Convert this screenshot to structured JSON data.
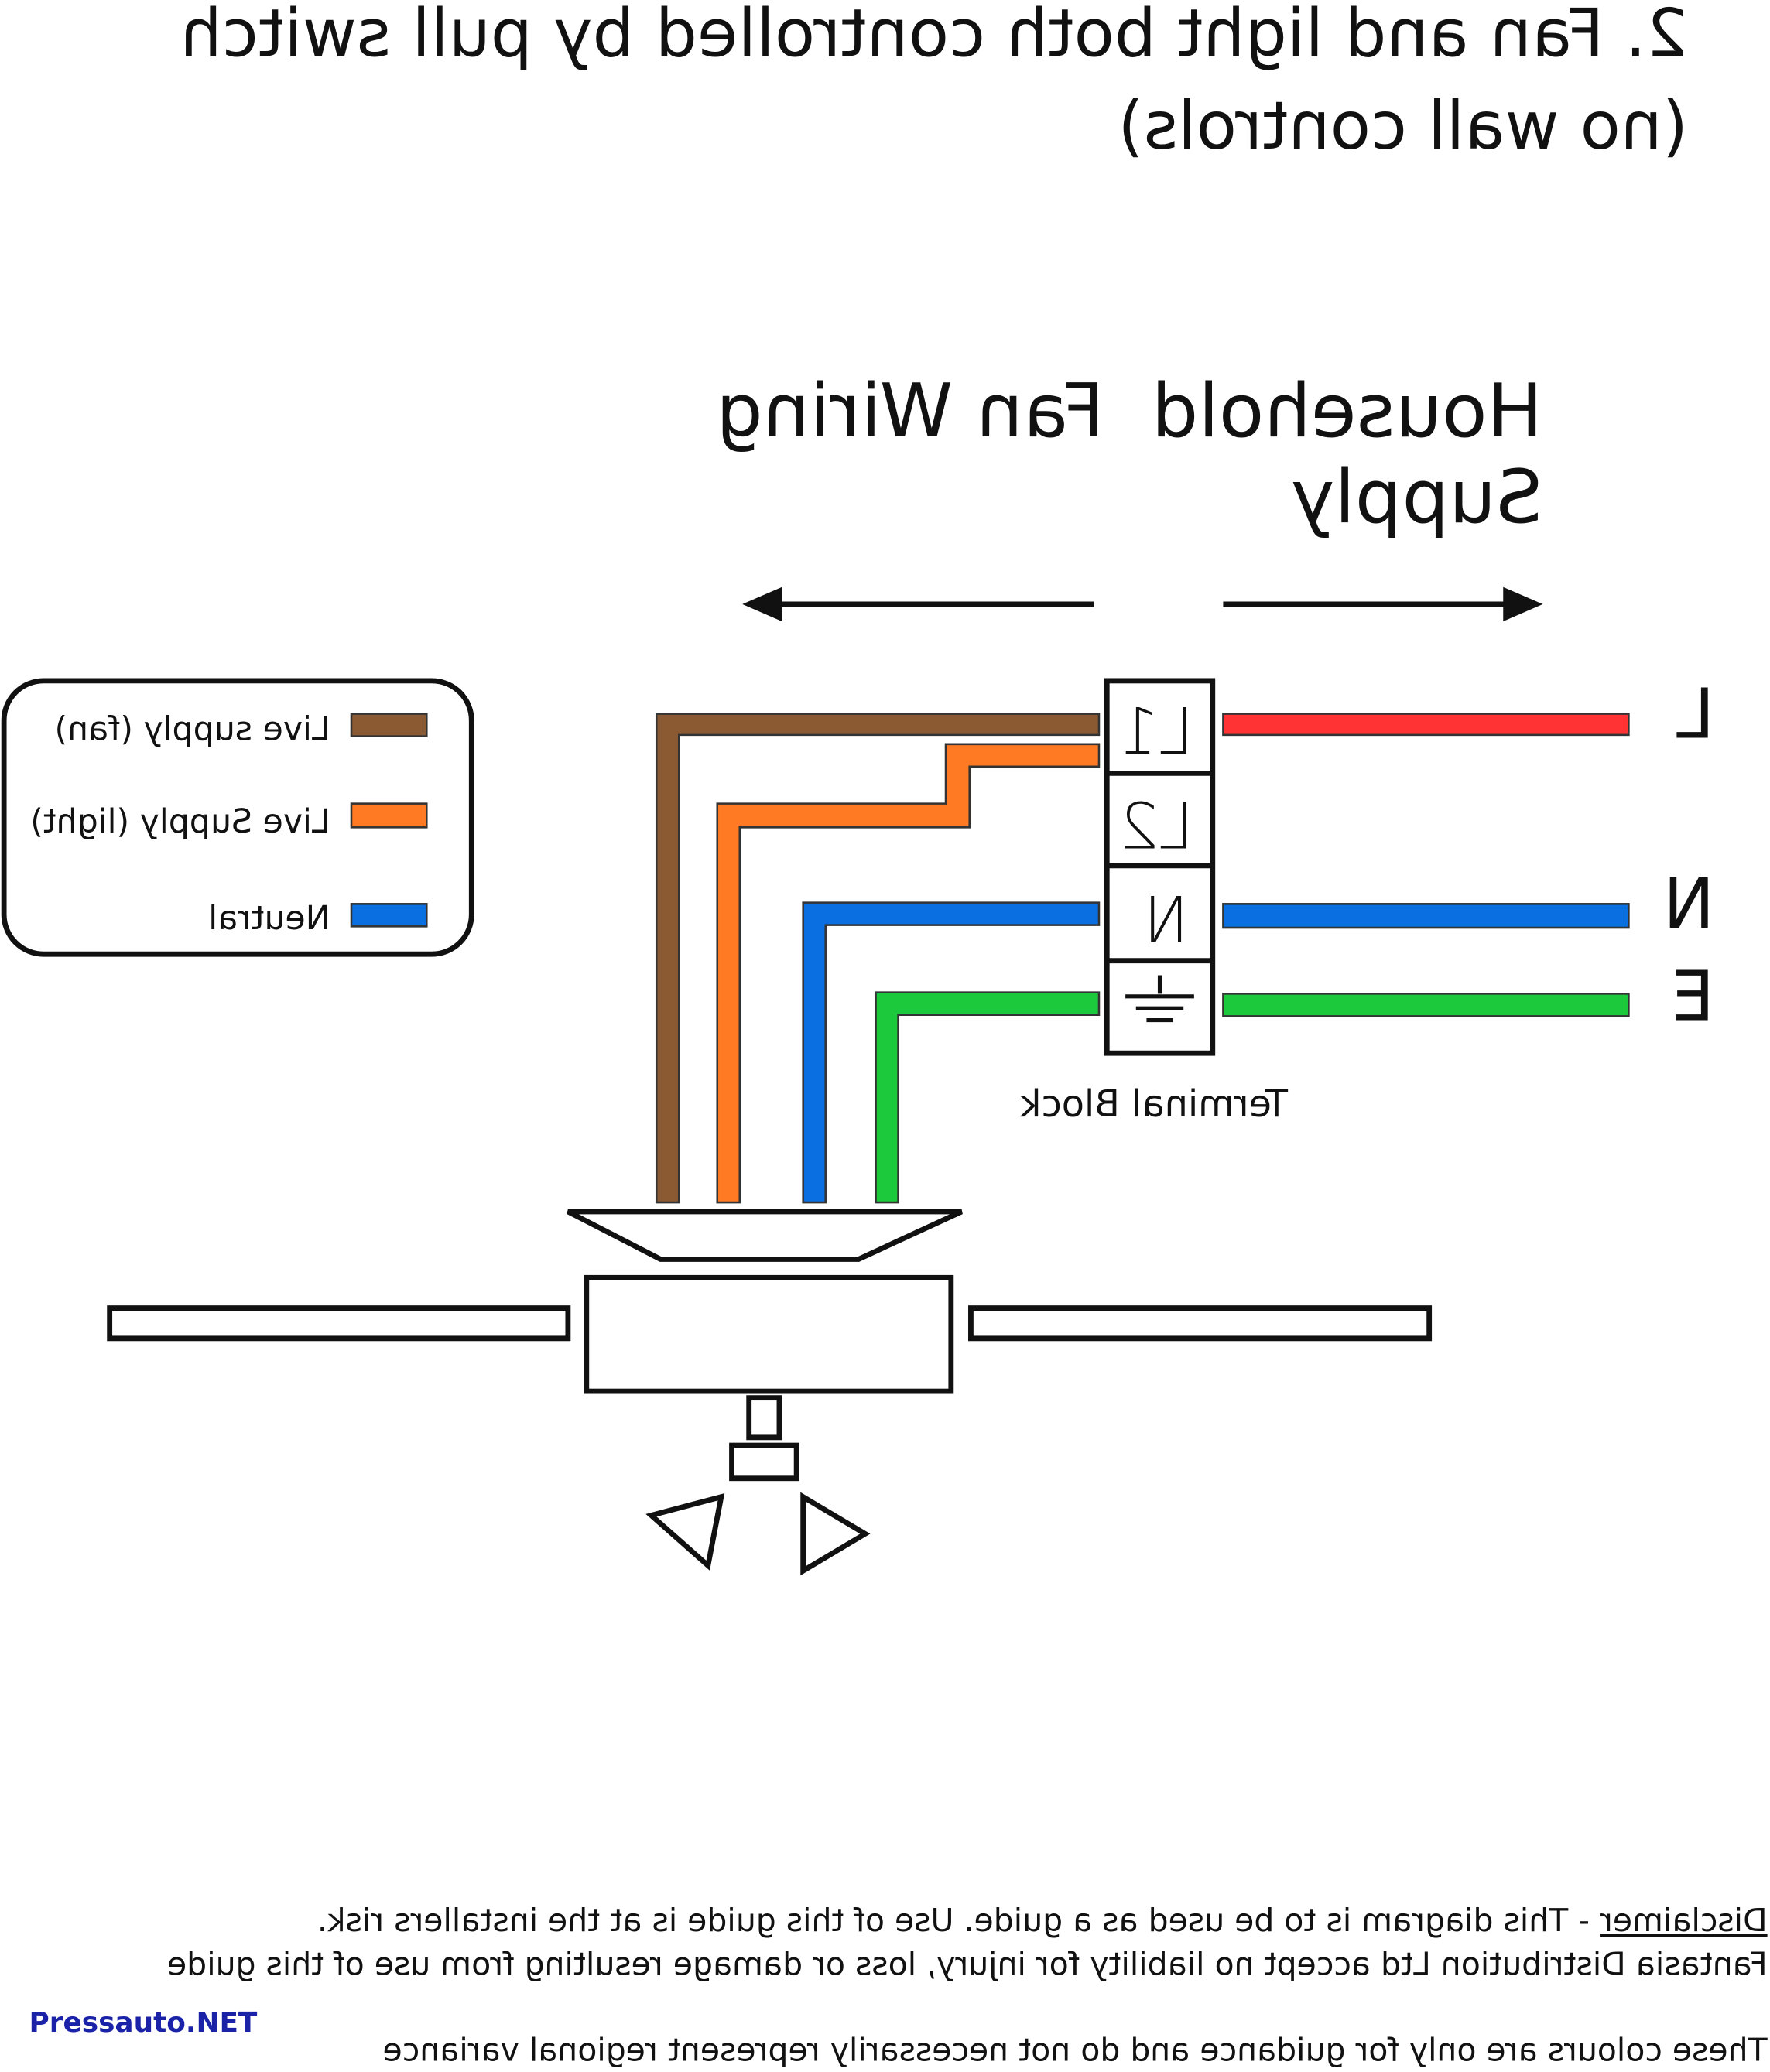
{
  "diagram": {
    "mirrored": true,
    "title_line1": "2. Fan and light both controlled by pull switch",
    "title_line2": "(no wall controls)",
    "household_supply_line1": "Household",
    "household_supply_line2": "Supply",
    "fan_wiring": "Fan Wiring",
    "terminal_block_label": "Terminal Block",
    "terminals": [
      "L1",
      "L2",
      "N",
      "earth-symbol"
    ],
    "supply_labels": [
      "L",
      "N",
      "E"
    ],
    "legend": [
      {
        "label": "Live supply (fan)",
        "color": "#8B5A32"
      },
      {
        "label": "Live Supply (light)",
        "color": "#FF7A22"
      },
      {
        "label": "Neutral",
        "color": "#0A6FE0"
      }
    ],
    "wire_colors": {
      "live_supply": "#FF3333",
      "neutral": "#0A6FE0",
      "earth": "#1DC93C",
      "fan_live": "#8B5A32",
      "light_live": "#FF7A22"
    },
    "disclaimer_heading": "Disclaimer",
    "disclaimer_line1": " - This diagram is to be used as a guide.  Use of this guide is at the installers risk.",
    "disclaimer_line2": "Fantasia Distribution Ltd accept no liability for injury, loss or damage resulting from use of this guide",
    "disclaimer_line3": "These colours are only for guidance and do not necessarily represent regional variance",
    "watermark": "Pressauto.NET"
  }
}
